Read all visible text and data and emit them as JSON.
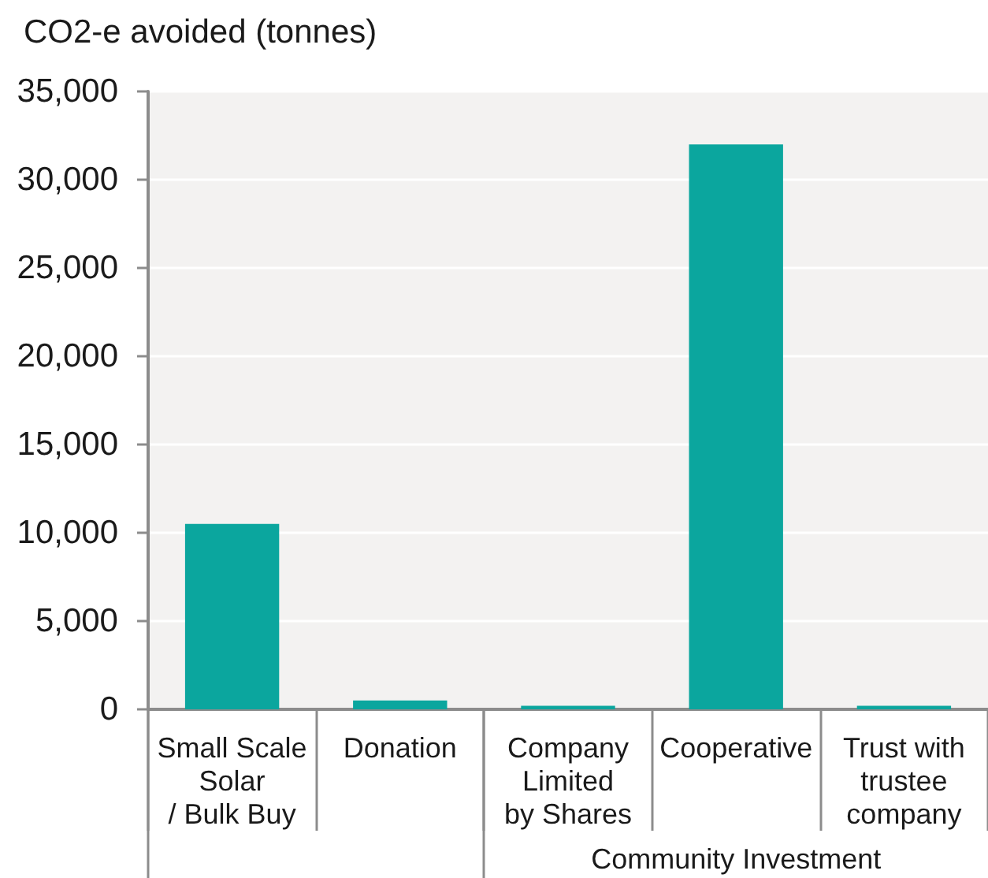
{
  "chart_data": {
    "type": "bar",
    "ylabel": "CO2-e avoided (tonnes)",
    "categories": [
      "Small Scale\nSolar\n/ Bulk Buy",
      "Donation",
      "Company\nLimited\nby Shares",
      "Cooperative",
      "Trust with\ntrustee\ncompany"
    ],
    "values": [
      10500,
      500,
      200,
      32000,
      200
    ],
    "color": "#0ba69e",
    "ylim": [
      0,
      35000
    ],
    "yticks": [
      0,
      {
        "value": 5000,
        "label": "5,000"
      },
      {
        "value": 10000,
        "label": "10,000"
      },
      {
        "value": 15000,
        "label": "15,000"
      },
      {
        "value": 20000,
        "label": "20,000"
      },
      {
        "value": 25000,
        "label": "25,000"
      },
      {
        "value": 30000,
        "label": "30,000"
      },
      {
        "value": 35000,
        "label": "35,000"
      }
    ],
    "grid": "y",
    "annotations": [
      "Community Investment"
    ]
  }
}
